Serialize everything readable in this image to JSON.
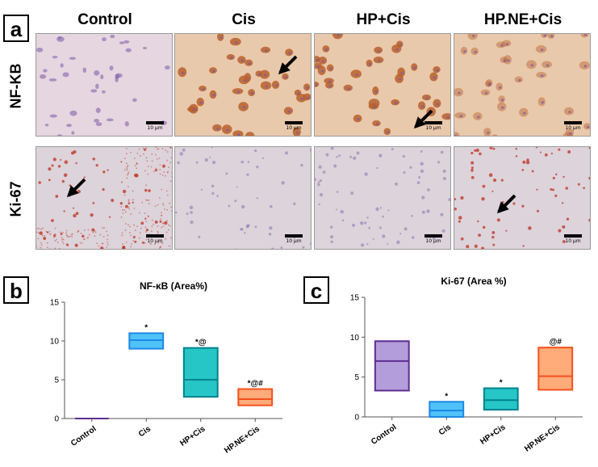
{
  "panel_a": {
    "letter": "a",
    "columns": [
      "Control",
      "Cis",
      "HP+Cis",
      "HP.NE+Cis"
    ],
    "rows": [
      "NF-KB",
      "Ki-67"
    ],
    "scale_label": "10 μm",
    "colors": {
      "nfkb_bg": "#e6d6df",
      "nfkb_bg_stained": "#e9c9ac",
      "ki67_bg": "#ddd3da",
      "stain_brown": "#b8602a",
      "nucleus": "#7a5aa8",
      "ki67_dot": "#c0392b"
    }
  },
  "chart_data": [
    {
      "type": "box",
      "panel_letter": "b",
      "title": "NF-κB (Area%)",
      "categories": [
        "Control",
        "Cis",
        "HP+Cis",
        "HP.NE+Cis"
      ],
      "ylim": [
        0,
        15
      ],
      "yticks": [
        0,
        5,
        10,
        15
      ],
      "boxes": [
        {
          "min": 0,
          "median": 0,
          "max": 0
        },
        {
          "min": 9,
          "median": 10.1,
          "max": 11
        },
        {
          "min": 2.8,
          "median": 5,
          "max": 9.1
        },
        {
          "min": 1.7,
          "median": 2.5,
          "max": 3.8
        }
      ],
      "significance": [
        "",
        "*",
        "*@",
        "*@#"
      ],
      "colors": [
        {
          "fill": "#b39ddb",
          "stroke": "#5e2d91"
        },
        {
          "fill": "#4fc3f7",
          "stroke": "#1e88e5"
        },
        {
          "fill": "#26c6c6",
          "stroke": "#00838f"
        },
        {
          "fill": "#ffab7a",
          "stroke": "#f4511e"
        }
      ]
    },
    {
      "type": "box",
      "panel_letter": "c",
      "title": "Ki-67 (Area %)",
      "categories": [
        "Control",
        "Cis",
        "HP+Cis",
        "HP.NE+Cis"
      ],
      "ylim": [
        0,
        15
      ],
      "yticks": [
        0,
        5,
        10,
        15
      ],
      "boxes": [
        {
          "min": 3.3,
          "median": 7,
          "max": 9.5
        },
        {
          "min": 0,
          "median": 0.8,
          "max": 1.9
        },
        {
          "min": 0.9,
          "median": 2.1,
          "max": 3.6
        },
        {
          "min": 3.4,
          "median": 5.1,
          "max": 8.7
        }
      ],
      "significance": [
        "",
        "*",
        "*",
        "@#"
      ],
      "colors": [
        {
          "fill": "#b39ddb",
          "stroke": "#5e2d91"
        },
        {
          "fill": "#4fc3f7",
          "stroke": "#1e88e5"
        },
        {
          "fill": "#26c6c6",
          "stroke": "#00838f"
        },
        {
          "fill": "#ffab7a",
          "stroke": "#f4511e"
        }
      ]
    }
  ]
}
